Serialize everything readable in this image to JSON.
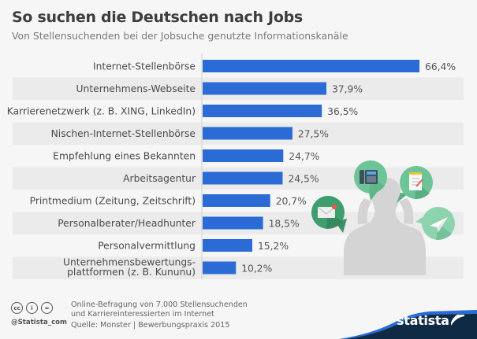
{
  "header": {
    "title": "So suchen die Deutschen nach Jobs",
    "subtitle": "Von Stellensuchenden bei der Jobsuche genutzte Informationskanäle"
  },
  "chart_data": {
    "type": "bar",
    "orientation": "horizontal",
    "title": "So suchen die Deutschen nach Jobs",
    "subtitle": "Von Stellensuchenden bei der Jobsuche genutzte Informationskanäle",
    "xlabel": "",
    "ylabel": "",
    "unit": "%",
    "xlim": [
      0,
      70
    ],
    "grid": false,
    "legend": "none",
    "bar_color": "#2b6bd6",
    "categories": [
      "Internet-Stellenbörse",
      "Unternehmens-Webseite",
      "Karrierenetzwerk (z. B. XING, LinkedIn)",
      "Nischen-Internet-Stellenbörse",
      "Empfehlung eines Bekannten",
      "Arbeitsagentur",
      "Printmedium (Zeitung, Zeitschrift)",
      "Personalberater/Headhunter",
      "Personalvermittlung",
      "Unternehmensbewertungs-\nplattformen (z. B. Kununu)"
    ],
    "values": [
      66.4,
      37.9,
      36.5,
      27.5,
      24.7,
      24.5,
      20.7,
      18.5,
      15.2,
      10.2
    ],
    "data_labels": [
      "66,4%",
      "37,9%",
      "36,5%",
      "27,5%",
      "24,7%",
      "24,5%",
      "20,7%",
      "18,5%",
      "15,2%",
      "10,2%"
    ]
  },
  "illustration": {
    "icons": [
      "phone-icon",
      "notepad-icon",
      "envelope-icon",
      "paper-plane-icon",
      "person-silhouette"
    ],
    "colors": {
      "bubble_light": "#6cc497",
      "bubble_dark": "#3f9e6e",
      "silhouette": "#d3d3d3"
    }
  },
  "footer": {
    "survey_line1": "Online-Befragung von 7.000 Stellensuchenden",
    "survey_line2": "und Karriereinteressierten im Internet",
    "source": "Quelle: Monster | Bewerbungspraxis 2015",
    "handle": "@Statista_com",
    "license_icons": [
      "cc",
      "by",
      "nd"
    ],
    "license_labels": [
      "cc",
      "i",
      "="
    ],
    "brand": "statista"
  }
}
